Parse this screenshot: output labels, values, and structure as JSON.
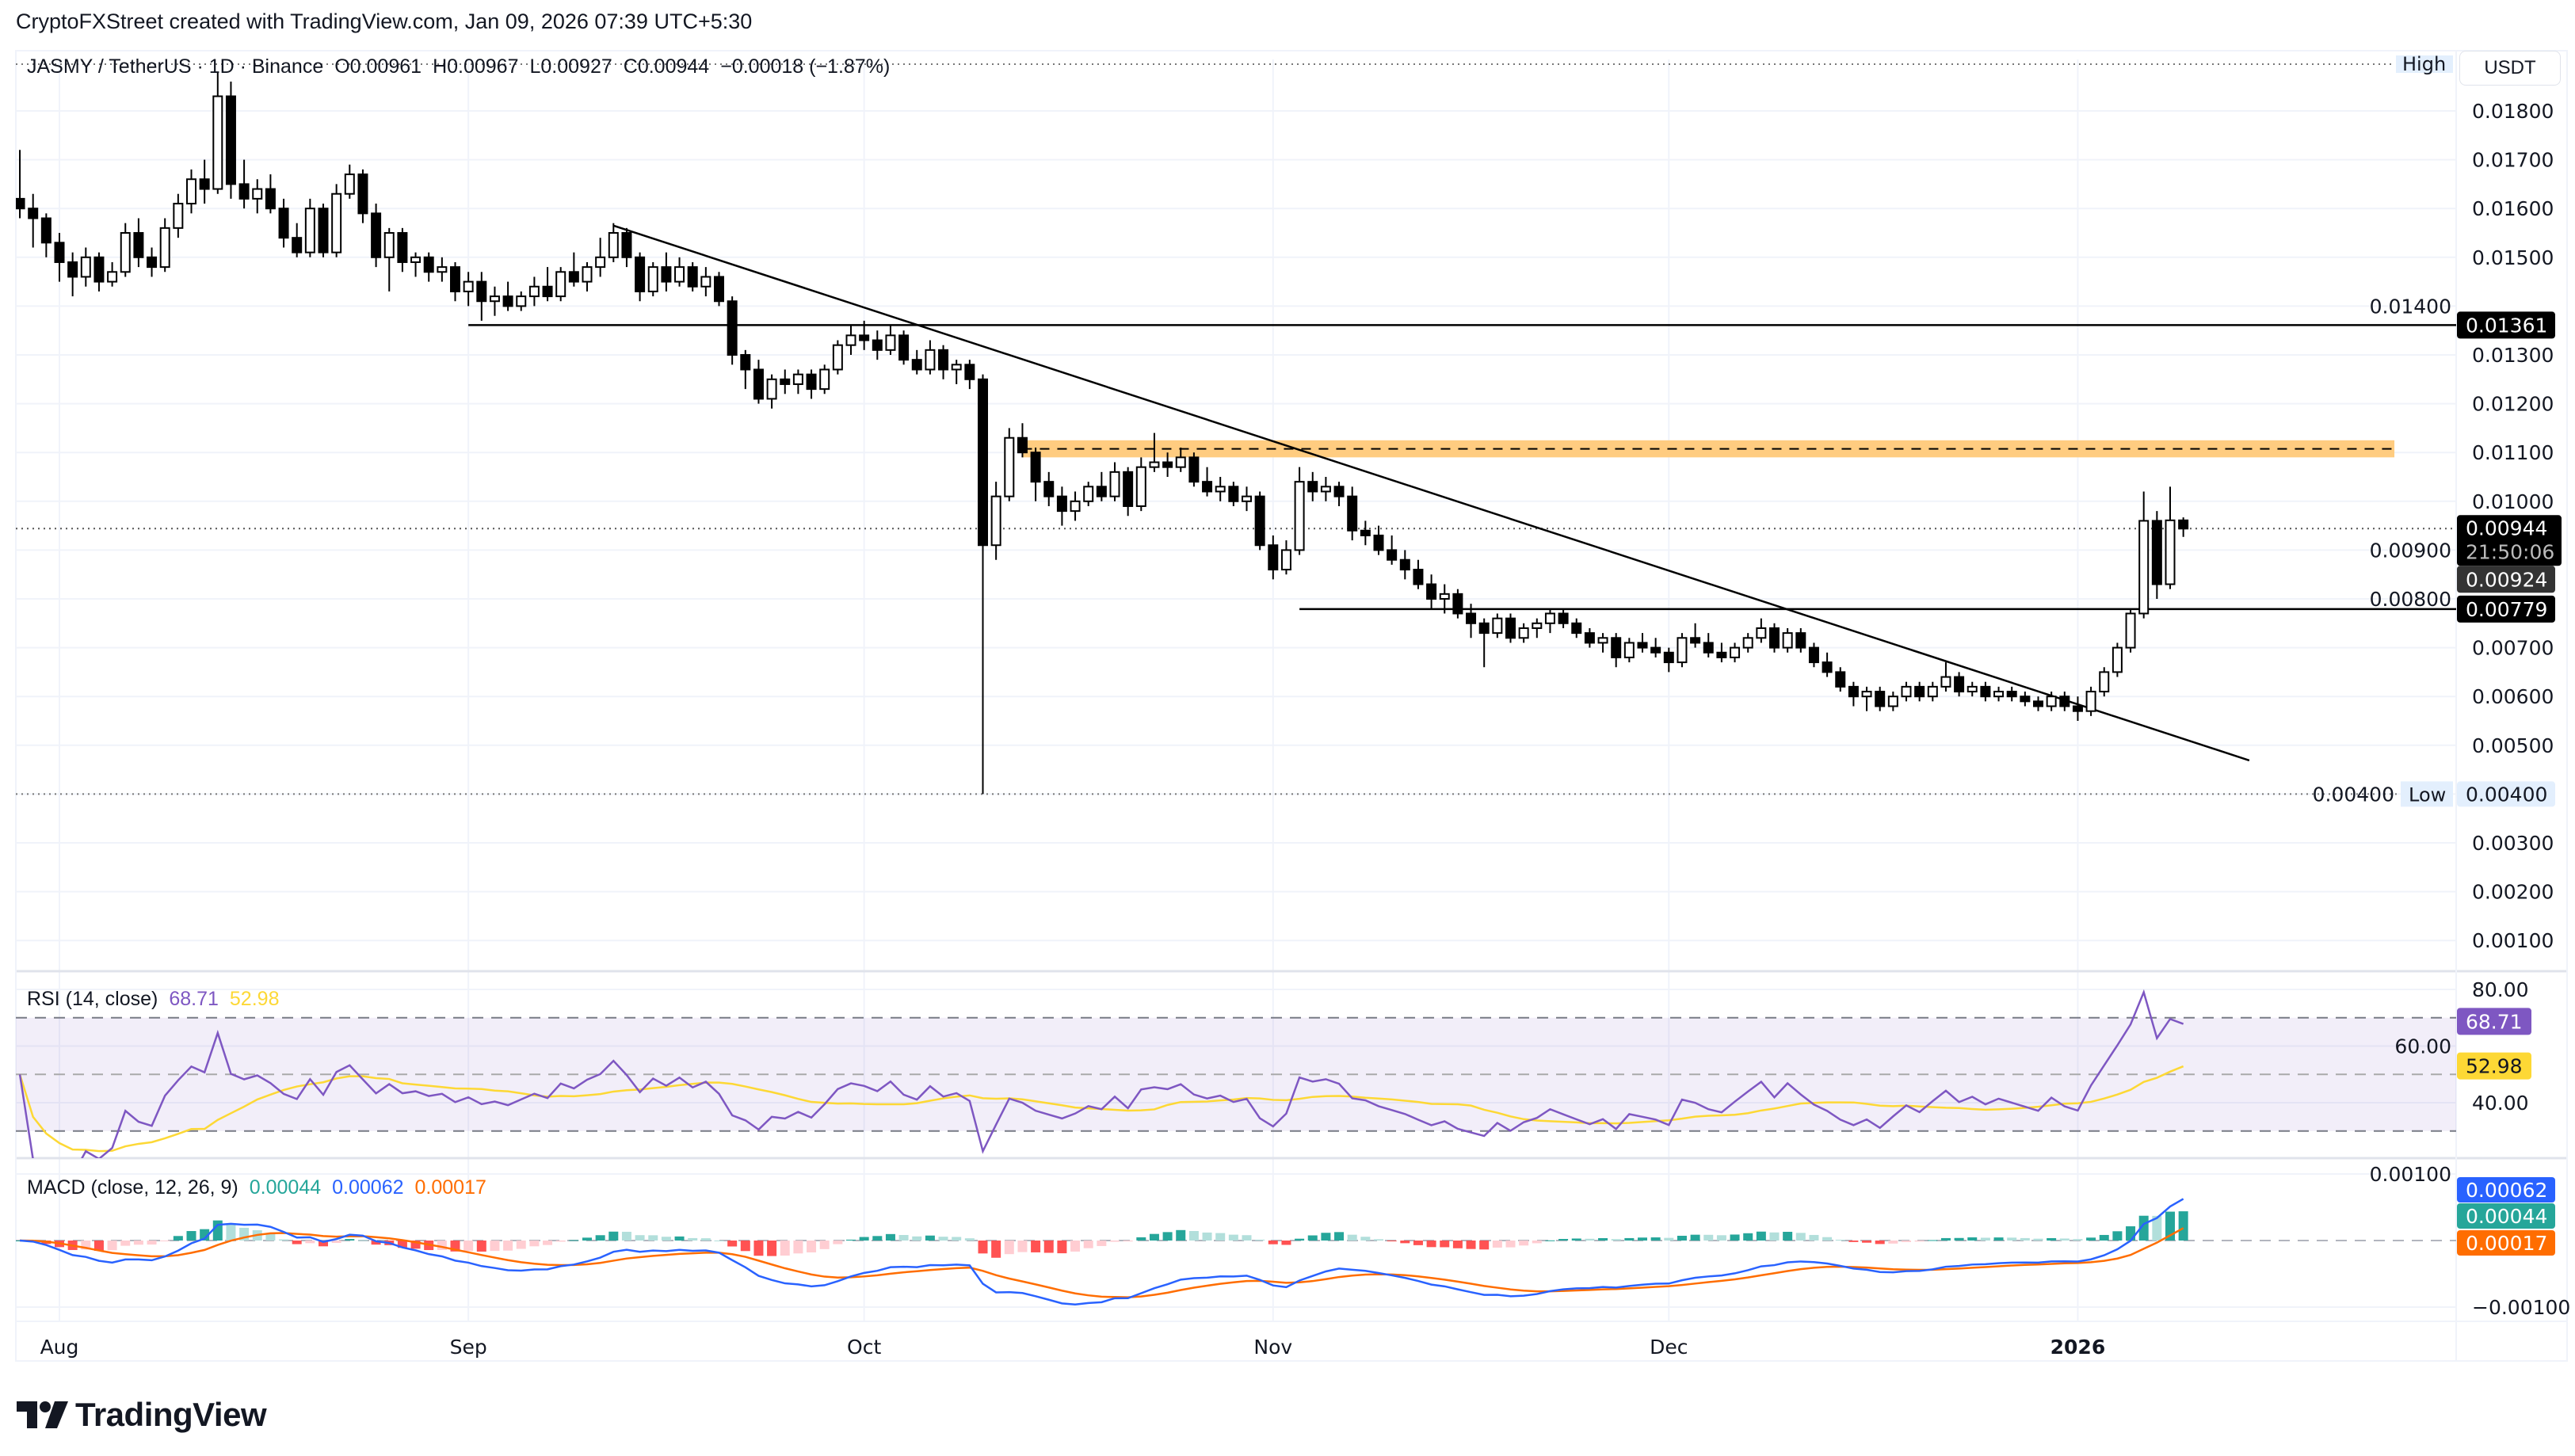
{
  "header": {
    "attribution": "CryptoFXStreet created with TradingView.com, Jan 09, 2026 07:39 UTC+5:30"
  },
  "legend": {
    "symbol": "JASMY / TetherUS · 1D · Binance",
    "open": "O0.00961",
    "high": "H0.00967",
    "low": "L0.00927",
    "close": "C0.00944",
    "change": "−0.00018 (−1.87%)"
  },
  "price_axis": {
    "currency": "USDT",
    "ticks": [
      "0.01800",
      "0.01700",
      "0.01600",
      "0.01500",
      "0.01400",
      "0.01300",
      "0.01200",
      "0.01100",
      "0.01000",
      "0.00900",
      "0.00800",
      "0.00700",
      "0.00600",
      "0.00500",
      "0.00400",
      "0.00300",
      "0.00200",
      "0.00100"
    ],
    "badges": {
      "resistance": "0.01361",
      "last_price": "0.00944",
      "countdown": "21:50:06",
      "secondary_price": "0.00924",
      "support": "0.00779",
      "high_label": "High",
      "low_label": "Low",
      "low_value": "0.00400"
    }
  },
  "rsi": {
    "label": "RSI (14, close)",
    "value": "68.71",
    "ma_value": "52.98",
    "ticks": [
      "80.00",
      "60.00",
      "40.00"
    ],
    "colors": {
      "rsi": "#7e57c2",
      "ma": "#fdd835"
    }
  },
  "macd": {
    "label": "MACD (close, 12, 26, 9)",
    "histogram_value": "0.00044",
    "macd_value": "0.00062",
    "signal_value": "0.00017",
    "ticks": [
      "0.00100",
      "−0.00100"
    ],
    "colors": {
      "macd": "#2962ff",
      "signal": "#ff6d00",
      "hist_up": "#26a69a",
      "hist_up_weak": "#b2dfdb",
      "hist_down": "#ff5252",
      "hist_down_weak": "#ffcdd2"
    }
  },
  "time_axis": {
    "labels": [
      {
        "text": "Aug",
        "date": "2025-08-01",
        "bold": false
      },
      {
        "text": "Sep",
        "date": "2025-09-01",
        "bold": false
      },
      {
        "text": "Oct",
        "date": "2025-10-01",
        "bold": false
      },
      {
        "text": "Nov",
        "date": "2025-11-01",
        "bold": false
      },
      {
        "text": "Dec",
        "date": "2025-12-01",
        "bold": false
      },
      {
        "text": "2026",
        "date": "2026-01-01",
        "bold": true
      }
    ]
  },
  "brand": {
    "logo_text": "TradingView"
  },
  "chart_data": {
    "type": "candlestick",
    "title": "JASMY / TetherUS · 1D · Binance",
    "ylim": [
      0.0,
      0.0193
    ],
    "grid": true,
    "colors": {
      "bull": "#ffffff",
      "bear": "#000000",
      "zone": "#ffcc80",
      "lines": "#000000"
    },
    "horizontal_levels": [
      {
        "price": 0.01361,
        "from": "2025-09-01"
      },
      {
        "price": 0.00779,
        "from": "2025-11-03"
      }
    ],
    "trendline": [
      {
        "date": "2025-09-12",
        "price": 0.01565
      },
      {
        "date": "2026-01-14",
        "price": 0.00469
      }
    ],
    "zone": {
      "from": "2025-10-13",
      "to": "2026-01-25",
      "low": 0.0109,
      "high": 0.01125
    },
    "last_price": 0.00944,
    "range_low": 0.004,
    "candles": [
      [
        "2025-07-29",
        0.0162,
        0.0172,
        0.0158,
        0.016
      ],
      [
        "2025-07-30",
        0.016,
        0.0163,
        0.0152,
        0.0158
      ],
      [
        "2025-07-31",
        0.0158,
        0.0159,
        0.015,
        0.0153
      ],
      [
        "2025-08-01",
        0.0153,
        0.0155,
        0.0145,
        0.0149
      ],
      [
        "2025-08-02",
        0.0149,
        0.0151,
        0.0142,
        0.0146
      ],
      [
        "2025-08-03",
        0.0146,
        0.0152,
        0.0144,
        0.015
      ],
      [
        "2025-08-04",
        0.015,
        0.0151,
        0.0143,
        0.0145
      ],
      [
        "2025-08-05",
        0.0145,
        0.0149,
        0.0144,
        0.0147
      ],
      [
        "2025-08-06",
        0.0147,
        0.0157,
        0.0146,
        0.0155
      ],
      [
        "2025-08-07",
        0.0155,
        0.0158,
        0.0148,
        0.015
      ],
      [
        "2025-08-08",
        0.015,
        0.0152,
        0.0146,
        0.0148
      ],
      [
        "2025-08-09",
        0.0148,
        0.0158,
        0.0147,
        0.0156
      ],
      [
        "2025-08-10",
        0.0156,
        0.0163,
        0.0154,
        0.0161
      ],
      [
        "2025-08-11",
        0.0161,
        0.0168,
        0.0159,
        0.0166
      ],
      [
        "2025-08-12",
        0.0166,
        0.017,
        0.0161,
        0.0164
      ],
      [
        "2025-08-13",
        0.0164,
        0.0188,
        0.0163,
        0.0183
      ],
      [
        "2025-08-14",
        0.0183,
        0.0186,
        0.0162,
        0.0165
      ],
      [
        "2025-08-15",
        0.0165,
        0.017,
        0.016,
        0.0162
      ],
      [
        "2025-08-16",
        0.0162,
        0.0166,
        0.0159,
        0.0164
      ],
      [
        "2025-08-17",
        0.0164,
        0.0167,
        0.0159,
        0.016
      ],
      [
        "2025-08-18",
        0.016,
        0.0162,
        0.0152,
        0.0154
      ],
      [
        "2025-08-19",
        0.0154,
        0.0157,
        0.015,
        0.0151
      ],
      [
        "2025-08-20",
        0.0151,
        0.0162,
        0.015,
        0.016
      ],
      [
        "2025-08-21",
        0.016,
        0.0161,
        0.015,
        0.0151
      ],
      [
        "2025-08-22",
        0.0151,
        0.0165,
        0.015,
        0.0163
      ],
      [
        "2025-08-23",
        0.0163,
        0.0169,
        0.0162,
        0.0167
      ],
      [
        "2025-08-24",
        0.0167,
        0.0168,
        0.0157,
        0.0159
      ],
      [
        "2025-08-25",
        0.0159,
        0.0161,
        0.0148,
        0.015
      ],
      [
        "2025-08-26",
        0.015,
        0.0156,
        0.0143,
        0.0155
      ],
      [
        "2025-08-27",
        0.0155,
        0.0156,
        0.0147,
        0.0149
      ],
      [
        "2025-08-28",
        0.0149,
        0.0151,
        0.0146,
        0.015
      ],
      [
        "2025-08-29",
        0.015,
        0.0151,
        0.0145,
        0.0147
      ],
      [
        "2025-08-30",
        0.0147,
        0.015,
        0.0145,
        0.0148
      ],
      [
        "2025-08-31",
        0.0148,
        0.0149,
        0.0141,
        0.0143
      ],
      [
        "2025-09-01",
        0.0143,
        0.0147,
        0.014,
        0.0145
      ],
      [
        "2025-09-02",
        0.0145,
        0.0147,
        0.0137,
        0.0141
      ],
      [
        "2025-09-03",
        0.0141,
        0.0144,
        0.0138,
        0.0142
      ],
      [
        "2025-09-04",
        0.0142,
        0.0145,
        0.0139,
        0.014
      ],
      [
        "2025-09-05",
        0.014,
        0.0143,
        0.0139,
        0.0142
      ],
      [
        "2025-09-06",
        0.0142,
        0.0146,
        0.014,
        0.0144
      ],
      [
        "2025-09-07",
        0.0144,
        0.0148,
        0.0141,
        0.0142
      ],
      [
        "2025-09-08",
        0.0142,
        0.0148,
        0.0141,
        0.0147
      ],
      [
        "2025-09-09",
        0.0147,
        0.0151,
        0.0144,
        0.0145
      ],
      [
        "2025-09-10",
        0.0145,
        0.0149,
        0.0143,
        0.0148
      ],
      [
        "2025-09-11",
        0.0148,
        0.0154,
        0.0146,
        0.015
      ],
      [
        "2025-09-12",
        0.015,
        0.0157,
        0.0149,
        0.0155
      ],
      [
        "2025-09-13",
        0.0155,
        0.0156,
        0.0148,
        0.015
      ],
      [
        "2025-09-14",
        0.015,
        0.0151,
        0.0141,
        0.0143
      ],
      [
        "2025-09-15",
        0.0143,
        0.0149,
        0.0142,
        0.0148
      ],
      [
        "2025-09-16",
        0.0148,
        0.0151,
        0.0143,
        0.0145
      ],
      [
        "2025-09-17",
        0.0145,
        0.015,
        0.0144,
        0.0148
      ],
      [
        "2025-09-18",
        0.0148,
        0.0149,
        0.0143,
        0.0144
      ],
      [
        "2025-09-19",
        0.0144,
        0.0148,
        0.0142,
        0.0146
      ],
      [
        "2025-09-20",
        0.0146,
        0.0147,
        0.014,
        0.0141
      ],
      [
        "2025-09-21",
        0.0141,
        0.0142,
        0.0128,
        0.013
      ],
      [
        "2025-09-22",
        0.013,
        0.0131,
        0.0123,
        0.0127
      ],
      [
        "2025-09-23",
        0.0127,
        0.0129,
        0.012,
        0.0121
      ],
      [
        "2025-09-24",
        0.0121,
        0.0126,
        0.0119,
        0.0125
      ],
      [
        "2025-09-25",
        0.0125,
        0.0127,
        0.0122,
        0.0124
      ],
      [
        "2025-09-26",
        0.0124,
        0.0127,
        0.0122,
        0.0126
      ],
      [
        "2025-09-27",
        0.0126,
        0.0127,
        0.0121,
        0.0123
      ],
      [
        "2025-09-28",
        0.0123,
        0.0128,
        0.0122,
        0.0127
      ],
      [
        "2025-09-29",
        0.0127,
        0.0133,
        0.0126,
        0.0132
      ],
      [
        "2025-09-30",
        0.0132,
        0.0136,
        0.013,
        0.0134
      ],
      [
        "2025-10-01",
        0.0134,
        0.0137,
        0.0131,
        0.0133
      ],
      [
        "2025-10-02",
        0.0133,
        0.0135,
        0.0129,
        0.0131
      ],
      [
        "2025-10-03",
        0.0131,
        0.0136,
        0.013,
        0.0134
      ],
      [
        "2025-10-04",
        0.0134,
        0.0135,
        0.0128,
        0.0129
      ],
      [
        "2025-10-05",
        0.0129,
        0.0131,
        0.0126,
        0.0127
      ],
      [
        "2025-10-06",
        0.0127,
        0.0133,
        0.0126,
        0.0131
      ],
      [
        "2025-10-07",
        0.0131,
        0.0132,
        0.0125,
        0.0127
      ],
      [
        "2025-10-08",
        0.0127,
        0.0129,
        0.0124,
        0.0128
      ],
      [
        "2025-10-09",
        0.0128,
        0.0129,
        0.0123,
        0.0125
      ],
      [
        "2025-10-10",
        0.0125,
        0.0126,
        0.004,
        0.0091
      ],
      [
        "2025-10-11",
        0.0091,
        0.0104,
        0.0088,
        0.0101
      ],
      [
        "2025-10-12",
        0.0101,
        0.0115,
        0.01,
        0.0113
      ],
      [
        "2025-10-13",
        0.0113,
        0.0116,
        0.0109,
        0.011
      ],
      [
        "2025-10-14",
        0.011,
        0.0111,
        0.01,
        0.0104
      ],
      [
        "2025-10-15",
        0.0104,
        0.0106,
        0.0099,
        0.0101
      ],
      [
        "2025-10-16",
        0.0101,
        0.0103,
        0.0095,
        0.0098
      ],
      [
        "2025-10-17",
        0.0098,
        0.0102,
        0.0096,
        0.01
      ],
      [
        "2025-10-18",
        0.01,
        0.0104,
        0.0099,
        0.0103
      ],
      [
        "2025-10-19",
        0.0103,
        0.0106,
        0.01,
        0.0101
      ],
      [
        "2025-10-20",
        0.0101,
        0.0108,
        0.01,
        0.0106
      ],
      [
        "2025-10-21",
        0.0106,
        0.0107,
        0.0097,
        0.0099
      ],
      [
        "2025-10-22",
        0.0099,
        0.0109,
        0.0098,
        0.0107
      ],
      [
        "2025-10-23",
        0.0107,
        0.0114,
        0.0106,
        0.0108
      ],
      [
        "2025-10-24",
        0.0108,
        0.011,
        0.0105,
        0.0107
      ],
      [
        "2025-10-25",
        0.0107,
        0.0111,
        0.0106,
        0.0109
      ],
      [
        "2025-10-26",
        0.0109,
        0.011,
        0.0103,
        0.0104
      ],
      [
        "2025-10-27",
        0.0104,
        0.0107,
        0.0101,
        0.0102
      ],
      [
        "2025-10-28",
        0.0102,
        0.0105,
        0.01,
        0.0103
      ],
      [
        "2025-10-29",
        0.0103,
        0.0104,
        0.0099,
        0.01
      ],
      [
        "2025-10-30",
        0.01,
        0.0103,
        0.0098,
        0.0101
      ],
      [
        "2025-10-31",
        0.0101,
        0.0102,
        0.009,
        0.0091
      ],
      [
        "2025-11-01",
        0.0091,
        0.0093,
        0.0084,
        0.0086
      ],
      [
        "2025-11-02",
        0.0086,
        0.0092,
        0.0085,
        0.009
      ],
      [
        "2025-11-03",
        0.009,
        0.0107,
        0.0089,
        0.0104
      ],
      [
        "2025-11-04",
        0.0104,
        0.0106,
        0.01,
        0.0102
      ],
      [
        "2025-11-05",
        0.0102,
        0.0105,
        0.01,
        0.0103
      ],
      [
        "2025-11-06",
        0.0103,
        0.0104,
        0.0099,
        0.0101
      ],
      [
        "2025-11-07",
        0.0101,
        0.0103,
        0.0092,
        0.0094
      ],
      [
        "2025-11-08",
        0.0094,
        0.0096,
        0.0091,
        0.0093
      ],
      [
        "2025-11-09",
        0.0093,
        0.0095,
        0.0089,
        0.009
      ],
      [
        "2025-11-10",
        0.009,
        0.0093,
        0.0087,
        0.0088
      ],
      [
        "2025-11-11",
        0.0088,
        0.009,
        0.0084,
        0.0086
      ],
      [
        "2025-11-12",
        0.0086,
        0.0088,
        0.0082,
        0.0083
      ],
      [
        "2025-11-13",
        0.0083,
        0.0085,
        0.0078,
        0.008
      ],
      [
        "2025-11-14",
        0.008,
        0.0083,
        0.0077,
        0.0081
      ],
      [
        "2025-11-15",
        0.0081,
        0.0082,
        0.0076,
        0.0077
      ],
      [
        "2025-11-16",
        0.0077,
        0.0079,
        0.0072,
        0.0075
      ],
      [
        "2025-11-17",
        0.0075,
        0.0076,
        0.0066,
        0.0073
      ],
      [
        "2025-11-18",
        0.0073,
        0.0077,
        0.0072,
        0.0076
      ],
      [
        "2025-11-19",
        0.0076,
        0.0077,
        0.0071,
        0.0072
      ],
      [
        "2025-11-20",
        0.0072,
        0.0075,
        0.0071,
        0.0074
      ],
      [
        "2025-11-21",
        0.0074,
        0.0076,
        0.0072,
        0.0075
      ],
      [
        "2025-11-22",
        0.0075,
        0.0078,
        0.0073,
        0.0077
      ],
      [
        "2025-11-23",
        0.0077,
        0.0078,
        0.0074,
        0.0075
      ],
      [
        "2025-11-24",
        0.0075,
        0.0076,
        0.0072,
        0.0073
      ],
      [
        "2025-11-25",
        0.0073,
        0.0074,
        0.007,
        0.0071
      ],
      [
        "2025-11-26",
        0.0071,
        0.0073,
        0.0069,
        0.0072
      ],
      [
        "2025-11-27",
        0.0072,
        0.0073,
        0.0066,
        0.0068
      ],
      [
        "2025-11-28",
        0.0068,
        0.0072,
        0.0067,
        0.0071
      ],
      [
        "2025-11-29",
        0.0071,
        0.0073,
        0.0069,
        0.007
      ],
      [
        "2025-11-30",
        0.007,
        0.0072,
        0.0068,
        0.0069
      ],
      [
        "2025-12-01",
        0.0069,
        0.007,
        0.0065,
        0.0067
      ],
      [
        "2025-12-02",
        0.0067,
        0.0073,
        0.0066,
        0.0072
      ],
      [
        "2025-12-03",
        0.0072,
        0.0075,
        0.007,
        0.0071
      ],
      [
        "2025-12-04",
        0.0071,
        0.0073,
        0.0068,
        0.0069
      ],
      [
        "2025-12-05",
        0.0069,
        0.0071,
        0.0067,
        0.0068
      ],
      [
        "2025-12-06",
        0.0068,
        0.0071,
        0.0067,
        0.007
      ],
      [
        "2025-12-07",
        0.007,
        0.0073,
        0.0069,
        0.0072
      ],
      [
        "2025-12-08",
        0.0072,
        0.0076,
        0.0071,
        0.0074
      ],
      [
        "2025-12-09",
        0.0074,
        0.0075,
        0.0069,
        0.007
      ],
      [
        "2025-12-10",
        0.007,
        0.0074,
        0.0069,
        0.0073
      ],
      [
        "2025-12-11",
        0.0073,
        0.0074,
        0.0069,
        0.007
      ],
      [
        "2025-12-12",
        0.007,
        0.0071,
        0.0066,
        0.0067
      ],
      [
        "2025-12-13",
        0.0067,
        0.0069,
        0.0064,
        0.0065
      ],
      [
        "2025-12-14",
        0.0065,
        0.0066,
        0.0061,
        0.0062
      ],
      [
        "2025-12-15",
        0.0062,
        0.0063,
        0.0058,
        0.006
      ],
      [
        "2025-12-16",
        0.006,
        0.0062,
        0.0057,
        0.0061
      ],
      [
        "2025-12-17",
        0.0061,
        0.0062,
        0.0057,
        0.0058
      ],
      [
        "2025-12-18",
        0.0058,
        0.0061,
        0.0057,
        0.006
      ],
      [
        "2025-12-19",
        0.006,
        0.0063,
        0.0059,
        0.0062
      ],
      [
        "2025-12-20",
        0.0062,
        0.0063,
        0.0059,
        0.006
      ],
      [
        "2025-12-21",
        0.006,
        0.0063,
        0.0059,
        0.0062
      ],
      [
        "2025-12-22",
        0.0062,
        0.0067,
        0.0061,
        0.0064
      ],
      [
        "2025-12-23",
        0.0064,
        0.0065,
        0.006,
        0.0061
      ],
      [
        "2025-12-24",
        0.0061,
        0.0063,
        0.006,
        0.0062
      ],
      [
        "2025-12-25",
        0.0062,
        0.0063,
        0.0059,
        0.006
      ],
      [
        "2025-12-26",
        0.006,
        0.0062,
        0.0059,
        0.0061
      ],
      [
        "2025-12-27",
        0.0061,
        0.0062,
        0.0059,
        0.006
      ],
      [
        "2025-12-28",
        0.006,
        0.0061,
        0.0058,
        0.0059
      ],
      [
        "2025-12-29",
        0.0059,
        0.006,
        0.0057,
        0.0058
      ],
      [
        "2025-12-30",
        0.0058,
        0.0061,
        0.0057,
        0.006
      ],
      [
        "2025-12-31",
        0.006,
        0.0061,
        0.0057,
        0.0058
      ],
      [
        "2026-01-01",
        0.0058,
        0.006,
        0.0055,
        0.0057
      ],
      [
        "2026-01-02",
        0.0057,
        0.0062,
        0.0056,
        0.0061
      ],
      [
        "2026-01-03",
        0.0061,
        0.0066,
        0.006,
        0.0065
      ],
      [
        "2026-01-04",
        0.0065,
        0.0071,
        0.0064,
        0.007
      ],
      [
        "2026-01-05",
        0.007,
        0.0078,
        0.0069,
        0.0077
      ],
      [
        "2026-01-06",
        0.0077,
        0.0102,
        0.0076,
        0.0096
      ],
      [
        "2026-01-07",
        0.0096,
        0.0098,
        0.008,
        0.0083
      ],
      [
        "2026-01-08",
        0.0083,
        0.0103,
        0.0082,
        0.00961
      ],
      [
        "2026-01-09",
        0.00961,
        0.00967,
        0.00927,
        0.00944
      ]
    ]
  }
}
